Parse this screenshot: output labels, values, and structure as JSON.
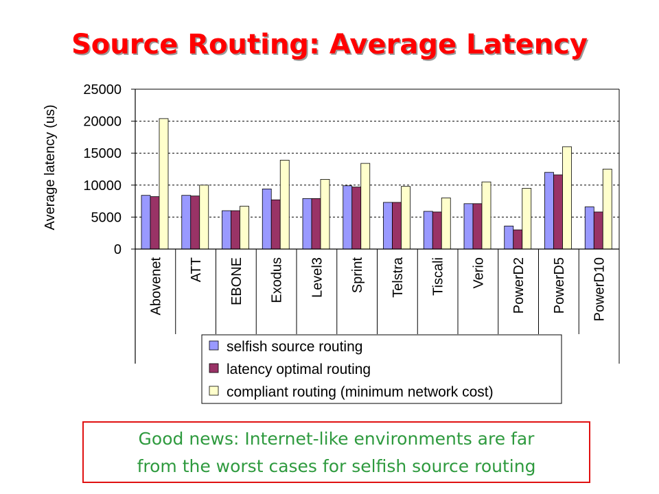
{
  "slide": {
    "title": "Source Routing: Average Latency",
    "note_line1": "Good news: Internet-like environments are far",
    "note_line2": "from the worst cases for selfish source routing"
  },
  "chart_data": {
    "type": "bar",
    "ylabel": "Average latency (us)",
    "ylim": [
      0,
      25000
    ],
    "yticks": [
      0,
      5000,
      10000,
      15000,
      20000,
      25000
    ],
    "grid": "horizontal dashed",
    "categories": [
      "Abovenet",
      "ATT",
      "EBONE",
      "Exodus",
      "Level3",
      "Sprint",
      "Telstra",
      "Tiscali",
      "Verio",
      "PowerD2",
      "PowerD5",
      "PowerD10"
    ],
    "series": [
      {
        "name": "selfish source routing",
        "color": "#9999ff",
        "values": [
          8400,
          8400,
          6000,
          9400,
          7900,
          9900,
          7300,
          5900,
          7100,
          3600,
          12000,
          6600
        ]
      },
      {
        "name": "latency optimal routing",
        "color": "#993366",
        "values": [
          8200,
          8300,
          6000,
          7700,
          7900,
          9700,
          7300,
          5800,
          7100,
          3000,
          11600,
          5800
        ]
      },
      {
        "name": "compliant routing (minimum network cost)",
        "color": "#ffffcc",
        "values": [
          20400,
          10000,
          6700,
          13900,
          10900,
          13400,
          9800,
          8000,
          10500,
          9500,
          16000,
          12500
        ]
      }
    ],
    "legend_position": "bottom-center"
  }
}
